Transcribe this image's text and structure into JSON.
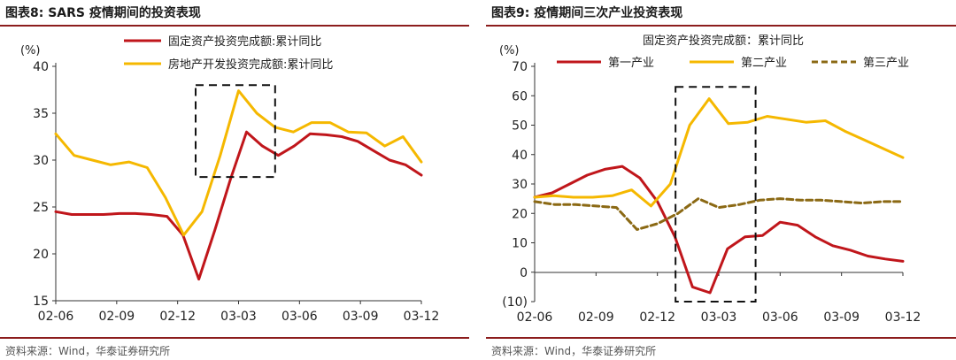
{
  "left": {
    "title": "图表8:  SARS 疫情期间的投资表现",
    "source": "资料来源：Wind，华泰证券研究所"
  },
  "right": {
    "title": "图表9:  疫情期间三次产业投资表现",
    "source": "资料来源：Wind，华泰证券研究所"
  },
  "chart_data": [
    {
      "type": "line",
      "unit_label": "(%)",
      "ylim": [
        15,
        40
      ],
      "yticks": [
        15,
        20,
        25,
        30,
        35,
        40
      ],
      "x_tick_labels": [
        "02-06",
        "02-09",
        "02-12",
        "03-03",
        "03-06",
        "03-09",
        "03-12"
      ],
      "grid": false,
      "legend_position": "top-center",
      "series": [
        {
          "name": "固定资产投资完成额:累计同比",
          "color": "#c0161b",
          "values": [
            24.5,
            24.2,
            24.2,
            24.2,
            24.3,
            24.3,
            24.2,
            24.0,
            22.0,
            17.3,
            22.5,
            28.0,
            33.0,
            31.5,
            30.5,
            31.5,
            32.8,
            32.7,
            32.5,
            32.0,
            31.0,
            30.0,
            29.5,
            28.4
          ]
        },
        {
          "name": "房地产开发投资完成额:累计同比",
          "color": "#f5b800",
          "values": [
            32.8,
            30.5,
            30.0,
            29.5,
            29.8,
            29.2,
            26.0,
            22.0,
            24.5,
            30.5,
            37.4,
            35.0,
            33.5,
            33.0,
            34.0,
            34.0,
            33.0,
            32.9,
            31.5,
            32.5,
            29.8
          ]
        }
      ],
      "annotation": {
        "type": "dashed-box",
        "x_range_index": [
          8.8,
          13.8
        ],
        "y_range": [
          28.2,
          38.0
        ]
      }
    },
    {
      "type": "line",
      "unit_label": "(%)",
      "ylim": [
        -10,
        70
      ],
      "yticks": [
        -10,
        0,
        10,
        20,
        30,
        40,
        50,
        60,
        70
      ],
      "ytick_labels": [
        "(10)",
        "0",
        "10",
        "20",
        "30",
        "40",
        "50",
        "60",
        "70"
      ],
      "x_tick_labels": [
        "02-06",
        "02-09",
        "02-12",
        "03-03",
        "03-06",
        "03-09",
        "03-12"
      ],
      "grid": false,
      "legend_position": "top-center",
      "legend_title": "固定资产投资完成额：累计同比",
      "series": [
        {
          "name": "第一产业",
          "color": "#c0161b",
          "style": "solid",
          "values": [
            25.5,
            27.0,
            30.0,
            33.0,
            35.0,
            36.0,
            32.0,
            24.0,
            12.0,
            -5.0,
            -7.0,
            8.0,
            12.0,
            12.5,
            17.0,
            16.0,
            12.0,
            9.0,
            7.5,
            5.5,
            4.5,
            3.7
          ]
        },
        {
          "name": "第二产业",
          "color": "#f5b800",
          "style": "solid",
          "values": [
            25.5,
            26.0,
            25.5,
            25.5,
            26.0,
            28.0,
            22.5,
            30.0,
            50.0,
            59.0,
            50.5,
            51.0,
            53.0,
            52.0,
            51.0,
            51.5,
            48.0,
            45.0,
            42.0,
            39.0
          ]
        },
        {
          "name": "第三产业",
          "color": "#8b6914",
          "style": "dashed",
          "values": [
            24.0,
            23.0,
            23.0,
            22.5,
            22.0,
            14.5,
            16.5,
            20.0,
            25.0,
            22.0,
            23.0,
            24.5,
            25.0,
            24.5,
            24.5,
            24.0,
            23.5,
            24.0,
            24.0
          ]
        }
      ],
      "annotation": {
        "type": "dashed-box",
        "x_range_index": [
          8.8,
          13.8
        ],
        "y_range": [
          -10,
          63
        ]
      }
    }
  ]
}
